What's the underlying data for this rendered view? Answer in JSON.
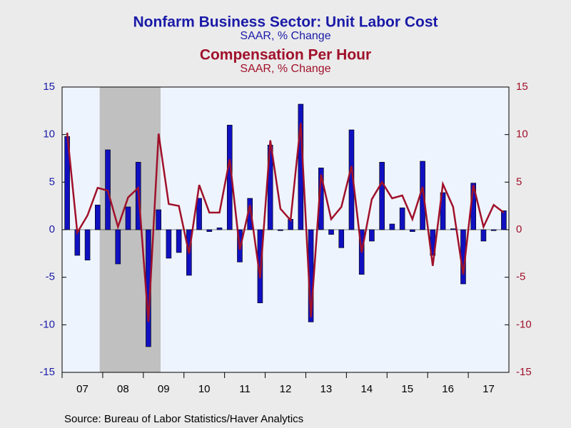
{
  "chart_data": {
    "type": "bar-line",
    "title": "Nonfarm Business Sector: Unit Labor Cost",
    "subtitle": "SAAR, % Change",
    "title2": "Compensation Per Hour",
    "subtitle2": "SAAR, % Change",
    "source": "Source:  Bureau of Labor Statistics/Haver Analytics",
    "x_labels": [
      "07",
      "08",
      "09",
      "10",
      "11",
      "12",
      "13",
      "14",
      "15",
      "16",
      "17"
    ],
    "periods_per_label": 4,
    "shading": {
      "start": 3.7,
      "end": 9.7,
      "color": "#c0c0c0"
    },
    "series": [
      {
        "name": "Unit Labor Cost",
        "kind": "bar",
        "color": "#1010c0",
        "values": [
          9.8,
          -2.7,
          -3.2,
          2.6,
          8.4,
          -3.6,
          2.4,
          7.1,
          -12.3,
          2.1,
          -3.0,
          -2.4,
          -4.8,
          3.3,
          -0.2,
          0.2,
          11.0,
          -3.4,
          3.3,
          -7.7,
          8.9,
          -0.1,
          1.1,
          13.2,
          -9.7,
          6.5,
          -0.5,
          -1.9,
          10.5,
          -4.7,
          -1.2,
          7.1,
          0.6,
          2.3,
          -0.2,
          7.2,
          -2.7,
          3.9,
          0.1,
          -5.7,
          4.9,
          -1.2,
          -0.1,
          2.0
        ]
      },
      {
        "name": "Compensation Per Hour",
        "kind": "line",
        "axis": "y2",
        "color": "#a0102a",
        "values": [
          10.2,
          -0.3,
          1.5,
          4.4,
          4.1,
          0.3,
          3.4,
          4.4,
          -9.7,
          10.1,
          2.7,
          2.5,
          -2.5,
          4.7,
          1.8,
          1.8,
          7.4,
          -2.1,
          2.6,
          -5.1,
          9.4,
          2.2,
          1.0,
          11.2,
          -9.2,
          5.8,
          1.1,
          2.4,
          6.7,
          -2.4,
          3.2,
          5.0,
          3.3,
          3.6,
          1.1,
          4.5,
          -3.8,
          4.8,
          2.4,
          -4.7,
          4.7,
          0.3,
          2.6,
          1.8
        ]
      }
    ],
    "ylim": [
      -15,
      15
    ],
    "yticks": [
      -15,
      -10,
      -5,
      0,
      5,
      10,
      15
    ],
    "y2lim": [
      -15,
      15
    ],
    "y2ticks": [
      -15,
      -10,
      -5,
      0,
      5,
      10,
      15
    ]
  }
}
